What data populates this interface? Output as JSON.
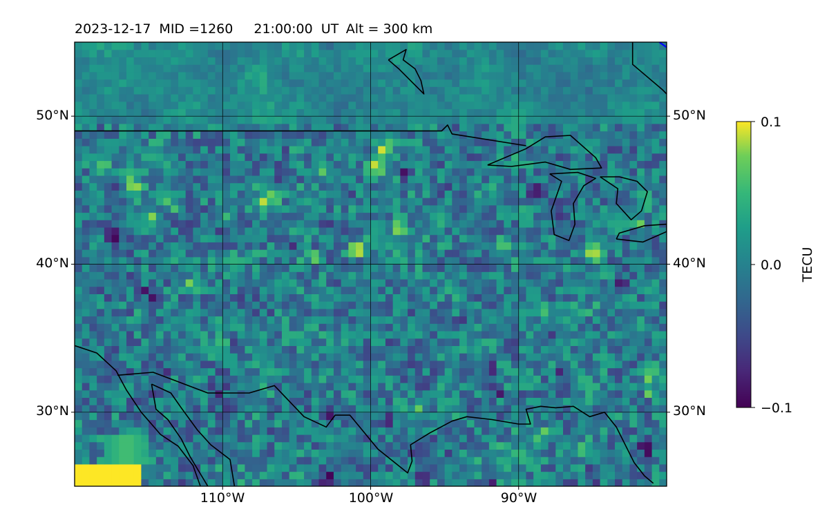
{
  "title": {
    "date": "2023-12-17",
    "mid": "MID =1260",
    "time": "21:00:00",
    "ut": "UT",
    "alt": "Alt = 300 km"
  },
  "map": {
    "projection": "equirectangular",
    "lon_range": [
      -120,
      -80
    ],
    "lat_range": [
      25,
      55
    ],
    "grid": true,
    "lon_ticks": [
      -110,
      -100,
      -90
    ],
    "lat_ticks": [
      30,
      40,
      50
    ],
    "lon_tick_labels": [
      "110°W",
      "100°W",
      "90°W"
    ],
    "lat_tick_labels": [
      "30°N",
      "40°N",
      "50°N"
    ],
    "field": "TEC anomaly (detrended)",
    "cell_size_deg": 0.5
  },
  "colorbar": {
    "label": "TECU",
    "colormap": "viridis",
    "min": -0.1,
    "max": 0.1,
    "ticks": [
      "0.1",
      "0.0",
      "−0.1"
    ]
  },
  "colors": {
    "coastline": "#000000",
    "grid": "#000000",
    "track_line": "#0000ff"
  },
  "chart_data": {
    "type": "heatmap",
    "title": "2023-12-17  MID =1260    21:00:00  UT  Alt = 300 km",
    "xlabel": "",
    "ylabel": "",
    "xlim": [
      -120,
      -80
    ],
    "ylim": [
      25,
      55
    ],
    "value_range": [
      -0.1,
      0.1
    ],
    "units": "TECU",
    "background_value": -0.005,
    "hot_region": {
      "lon": [
        -120,
        -115.5
      ],
      "lat": [
        25,
        26.5
      ],
      "value": 0.1
    },
    "warm_region": {
      "lon": [
        -117,
        -116
      ],
      "lat": [
        26.5,
        28
      ],
      "value": 0.06
    },
    "positive_spots": [
      [
        -107.5,
        44.2
      ],
      [
        -106.5,
        44.3
      ],
      [
        -104.5,
        46.5
      ],
      [
        -103.5,
        46.5
      ],
      [
        -105,
        47.5
      ],
      [
        -116,
        45.5
      ],
      [
        -118,
        46.5
      ],
      [
        -115,
        43
      ],
      [
        -113.5,
        44
      ],
      [
        -99.5,
        46.8
      ],
      [
        -99.2,
        48
      ],
      [
        -91.2,
        41.5
      ],
      [
        -88,
        36.8
      ],
      [
        -81.2,
        32.5
      ],
      [
        -86,
        27.5
      ],
      [
        -94,
        30.5
      ],
      [
        -96.5,
        29.8
      ],
      [
        -101,
        41
      ],
      [
        -110,
        43.5
      ],
      [
        -112,
        38.5
      ],
      [
        -115.5,
        36.5
      ],
      [
        -112.5,
        36.2
      ],
      [
        -85,
        40.8
      ],
      [
        -82,
        43
      ],
      [
        -81,
        31.5
      ],
      [
        -86.5,
        33
      ],
      [
        -95,
        31.8
      ],
      [
        -88.5,
        28.5
      ],
      [
        -104,
        40.5
      ],
      [
        -98,
        42.5
      ]
    ],
    "negative_spots": [
      [
        -103,
        25.5
      ],
      [
        -102,
        26.5
      ],
      [
        -92,
        25.5
      ],
      [
        -96.5,
        25.6
      ],
      [
        -91.5,
        31.5
      ],
      [
        -92,
        33
      ],
      [
        -96,
        32
      ],
      [
        -87,
        33
      ],
      [
        -85,
        25.7
      ],
      [
        -110.5,
        31.5
      ],
      [
        -114,
        32.5
      ],
      [
        -107,
        29
      ],
      [
        -99,
        29.5
      ],
      [
        -103,
        30
      ],
      [
        -109,
        34.5
      ],
      [
        -115,
        38
      ],
      [
        -105,
        41
      ],
      [
        -106,
        46
      ],
      [
        -104.5,
        46.2
      ],
      [
        -112,
        44.5
      ],
      [
        -101.5,
        44.5
      ],
      [
        -97.5,
        46.2
      ],
      [
        -89,
        45
      ],
      [
        -87.5,
        43.2
      ],
      [
        -83.2,
        38.5
      ],
      [
        -100.5,
        38.8
      ],
      [
        -117.5,
        42
      ],
      [
        -88,
        35
      ],
      [
        -94,
        36
      ],
      [
        -81.5,
        27.5
      ]
    ],
    "series": [
      {
        "name": "",
        "kind": "us-canada border",
        "points": [
          [
            -120,
            49
          ],
          [
            -95.2,
            49
          ],
          [
            -94.8,
            49.4
          ],
          [
            -94.5,
            48.8
          ],
          [
            -89.5,
            48
          ]
        ]
      },
      {
        "name": "",
        "kind": "us-mexico border and gulf coast",
        "points": [
          [
            -117.1,
            32.5
          ],
          [
            -114.7,
            32.7
          ],
          [
            -111,
            31.3
          ],
          [
            -108.2,
            31.3
          ],
          [
            -106.5,
            31.8
          ],
          [
            -104.5,
            29.7
          ],
          [
            -103,
            29
          ],
          [
            -102.4,
            29.8
          ],
          [
            -101.4,
            29.8
          ],
          [
            -99.5,
            27.5
          ],
          [
            -97.5,
            25.9
          ],
          [
            -97.2,
            26.7
          ],
          [
            -97.3,
            27.8
          ],
          [
            -96,
            28.6
          ],
          [
            -94.5,
            29.4
          ],
          [
            -93.5,
            29.7
          ],
          [
            -91.8,
            29.5
          ],
          [
            -90,
            29.2
          ],
          [
            -89.2,
            29.2
          ],
          [
            -89.5,
            30.2
          ],
          [
            -88.5,
            30.4
          ],
          [
            -87.5,
            30.3
          ],
          [
            -86.3,
            30.4
          ],
          [
            -85.2,
            29.7
          ],
          [
            -84.2,
            30
          ],
          [
            -83.4,
            29
          ],
          [
            -82.7,
            27.6
          ],
          [
            -82.2,
            26.6
          ],
          [
            -81.5,
            25.7
          ],
          [
            -80.9,
            25.2
          ]
        ]
      },
      {
        "name": "",
        "kind": "mexico pacific coast",
        "points": [
          [
            -120,
            34.5
          ],
          [
            -118.5,
            34
          ],
          [
            -117.2,
            32.8
          ],
          [
            -116.5,
            31.5
          ],
          [
            -115.5,
            30
          ],
          [
            -114.2,
            28.5
          ],
          [
            -113,
            27.7
          ],
          [
            -112,
            26.4
          ],
          [
            -111.5,
            25
          ]
        ]
      },
      {
        "name": "",
        "kind": "gulf of california coast",
        "points": [
          [
            -114.8,
            31.9
          ],
          [
            -113.5,
            31.3
          ],
          [
            -112.8,
            30.3
          ],
          [
            -111.7,
            28.8
          ],
          [
            -110.8,
            27.8
          ],
          [
            -109.5,
            26.8
          ],
          [
            -109.2,
            25
          ]
        ]
      },
      {
        "name": "",
        "kind": "baja inner coast",
        "points": [
          [
            -114.8,
            31.9
          ],
          [
            -114.5,
            30.2
          ],
          [
            -113.7,
            29.5
          ],
          [
            -112.8,
            28.2
          ],
          [
            -112.2,
            27
          ],
          [
            -111,
            25
          ]
        ]
      },
      {
        "name": "",
        "kind": "lake winnipeg",
        "points": [
          [
            -98.8,
            53.8
          ],
          [
            -97.6,
            54.5
          ],
          [
            -97.8,
            53.8
          ],
          [
            -97,
            53.2
          ],
          [
            -96.6,
            52.4
          ],
          [
            -96.4,
            51.5
          ],
          [
            -97.2,
            52.3
          ],
          [
            -98.1,
            53.2
          ],
          [
            -98.8,
            53.8
          ]
        ]
      },
      {
        "name": "",
        "kind": "lake superior",
        "points": [
          [
            -92.1,
            46.7
          ],
          [
            -89.5,
            47.8
          ],
          [
            -88.2,
            48.6
          ],
          [
            -86.5,
            48.7
          ],
          [
            -84.8,
            47.2
          ],
          [
            -84.4,
            46.5
          ],
          [
            -86.5,
            46.4
          ],
          [
            -88.2,
            46.9
          ],
          [
            -90.5,
            46.6
          ],
          [
            -92.1,
            46.7
          ]
        ]
      },
      {
        "name": "",
        "kind": "lake michigan",
        "points": [
          [
            -87.9,
            46.1
          ],
          [
            -87.1,
            45.6
          ],
          [
            -87.8,
            43.6
          ],
          [
            -87.6,
            42
          ],
          [
            -86.6,
            41.6
          ],
          [
            -86.2,
            42.7
          ],
          [
            -86.3,
            44.1
          ],
          [
            -85.6,
            45.3
          ],
          [
            -84.8,
            45.8
          ],
          [
            -86,
            46.2
          ],
          [
            -87.9,
            46.1
          ]
        ]
      },
      {
        "name": "",
        "kind": "lake huron",
        "points": [
          [
            -84.5,
            45.9
          ],
          [
            -83.2,
            45.9
          ],
          [
            -82,
            45.6
          ],
          [
            -81.3,
            44.9
          ],
          [
            -81.7,
            43.6
          ],
          [
            -82.4,
            43
          ],
          [
            -83.4,
            44.1
          ],
          [
            -83.3,
            45.1
          ],
          [
            -84.5,
            45.9
          ]
        ]
      },
      {
        "name": "",
        "kind": "lake erie",
        "points": [
          [
            -83.4,
            41.7
          ],
          [
            -81.6,
            41.5
          ],
          [
            -80,
            42.2
          ],
          [
            -80,
            42.7
          ],
          [
            -81.5,
            42.6
          ],
          [
            -83.2,
            42.1
          ],
          [
            -83.4,
            41.7
          ]
        ]
      },
      {
        "name": "",
        "kind": "hudson bay shore",
        "points": [
          [
            -82.3,
            55
          ],
          [
            -82.3,
            53.5
          ],
          [
            -80.3,
            51.8
          ],
          [
            -80,
            51.5
          ]
        ]
      },
      {
        "name": "",
        "kind": "blue track",
        "points": [
          [
            -80.5,
            55
          ],
          [
            -79.5,
            54.3
          ]
        ]
      }
    ]
  }
}
